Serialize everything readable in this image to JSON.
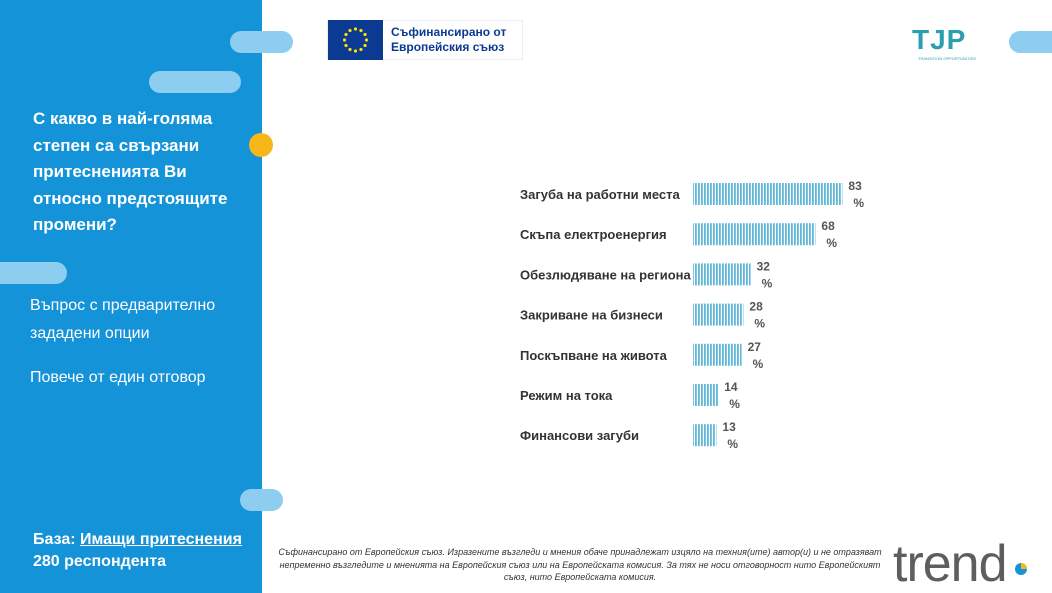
{
  "left_panel": {
    "question": "С какво в най-голяма степен са свързани притесненията Ви относно предстоящите промени?",
    "note_1": "Въпрос с предварително зададени опции",
    "note_2": "Повече от един отговор",
    "base_label": "База:",
    "base_value": "Имащи притеснения",
    "base_count": "280 респондента"
  },
  "header": {
    "eu_line_1": "Съфинансирано от",
    "eu_line_2": "Европейския съюз",
    "tjp_logo": "TJP",
    "tjp_tagline": "TRANSITION OPPORTUNITIES"
  },
  "chart_data": {
    "type": "bar",
    "orientation": "horizontal",
    "categories": [
      "Загуба на работни места",
      "Скъпа електроенергия",
      "Обезлюдяване на региона",
      "Закриване на бизнеси",
      "Поскъпване на живота",
      "Режим на тока",
      "Финансови загуби"
    ],
    "values": [
      83,
      68,
      32,
      28,
      27,
      14,
      13
    ],
    "value_suffix": "%",
    "xlim": [
      0,
      100
    ],
    "grid": false,
    "bar_color": "#5fb7d9"
  },
  "footer": {
    "disclaimer": "Съфинансирано от Европейския съюз. Изразените възгледи и мнения обаче принадлежат изцяло на техния(ите) автор(и) и не отразяват непременно възгледите и мненията на Европейския съюз или на Европейската комисия. За тях не носи отговорност нито Европейският съюз, нито Европейската комисия.",
    "trend_logo": "trend"
  }
}
